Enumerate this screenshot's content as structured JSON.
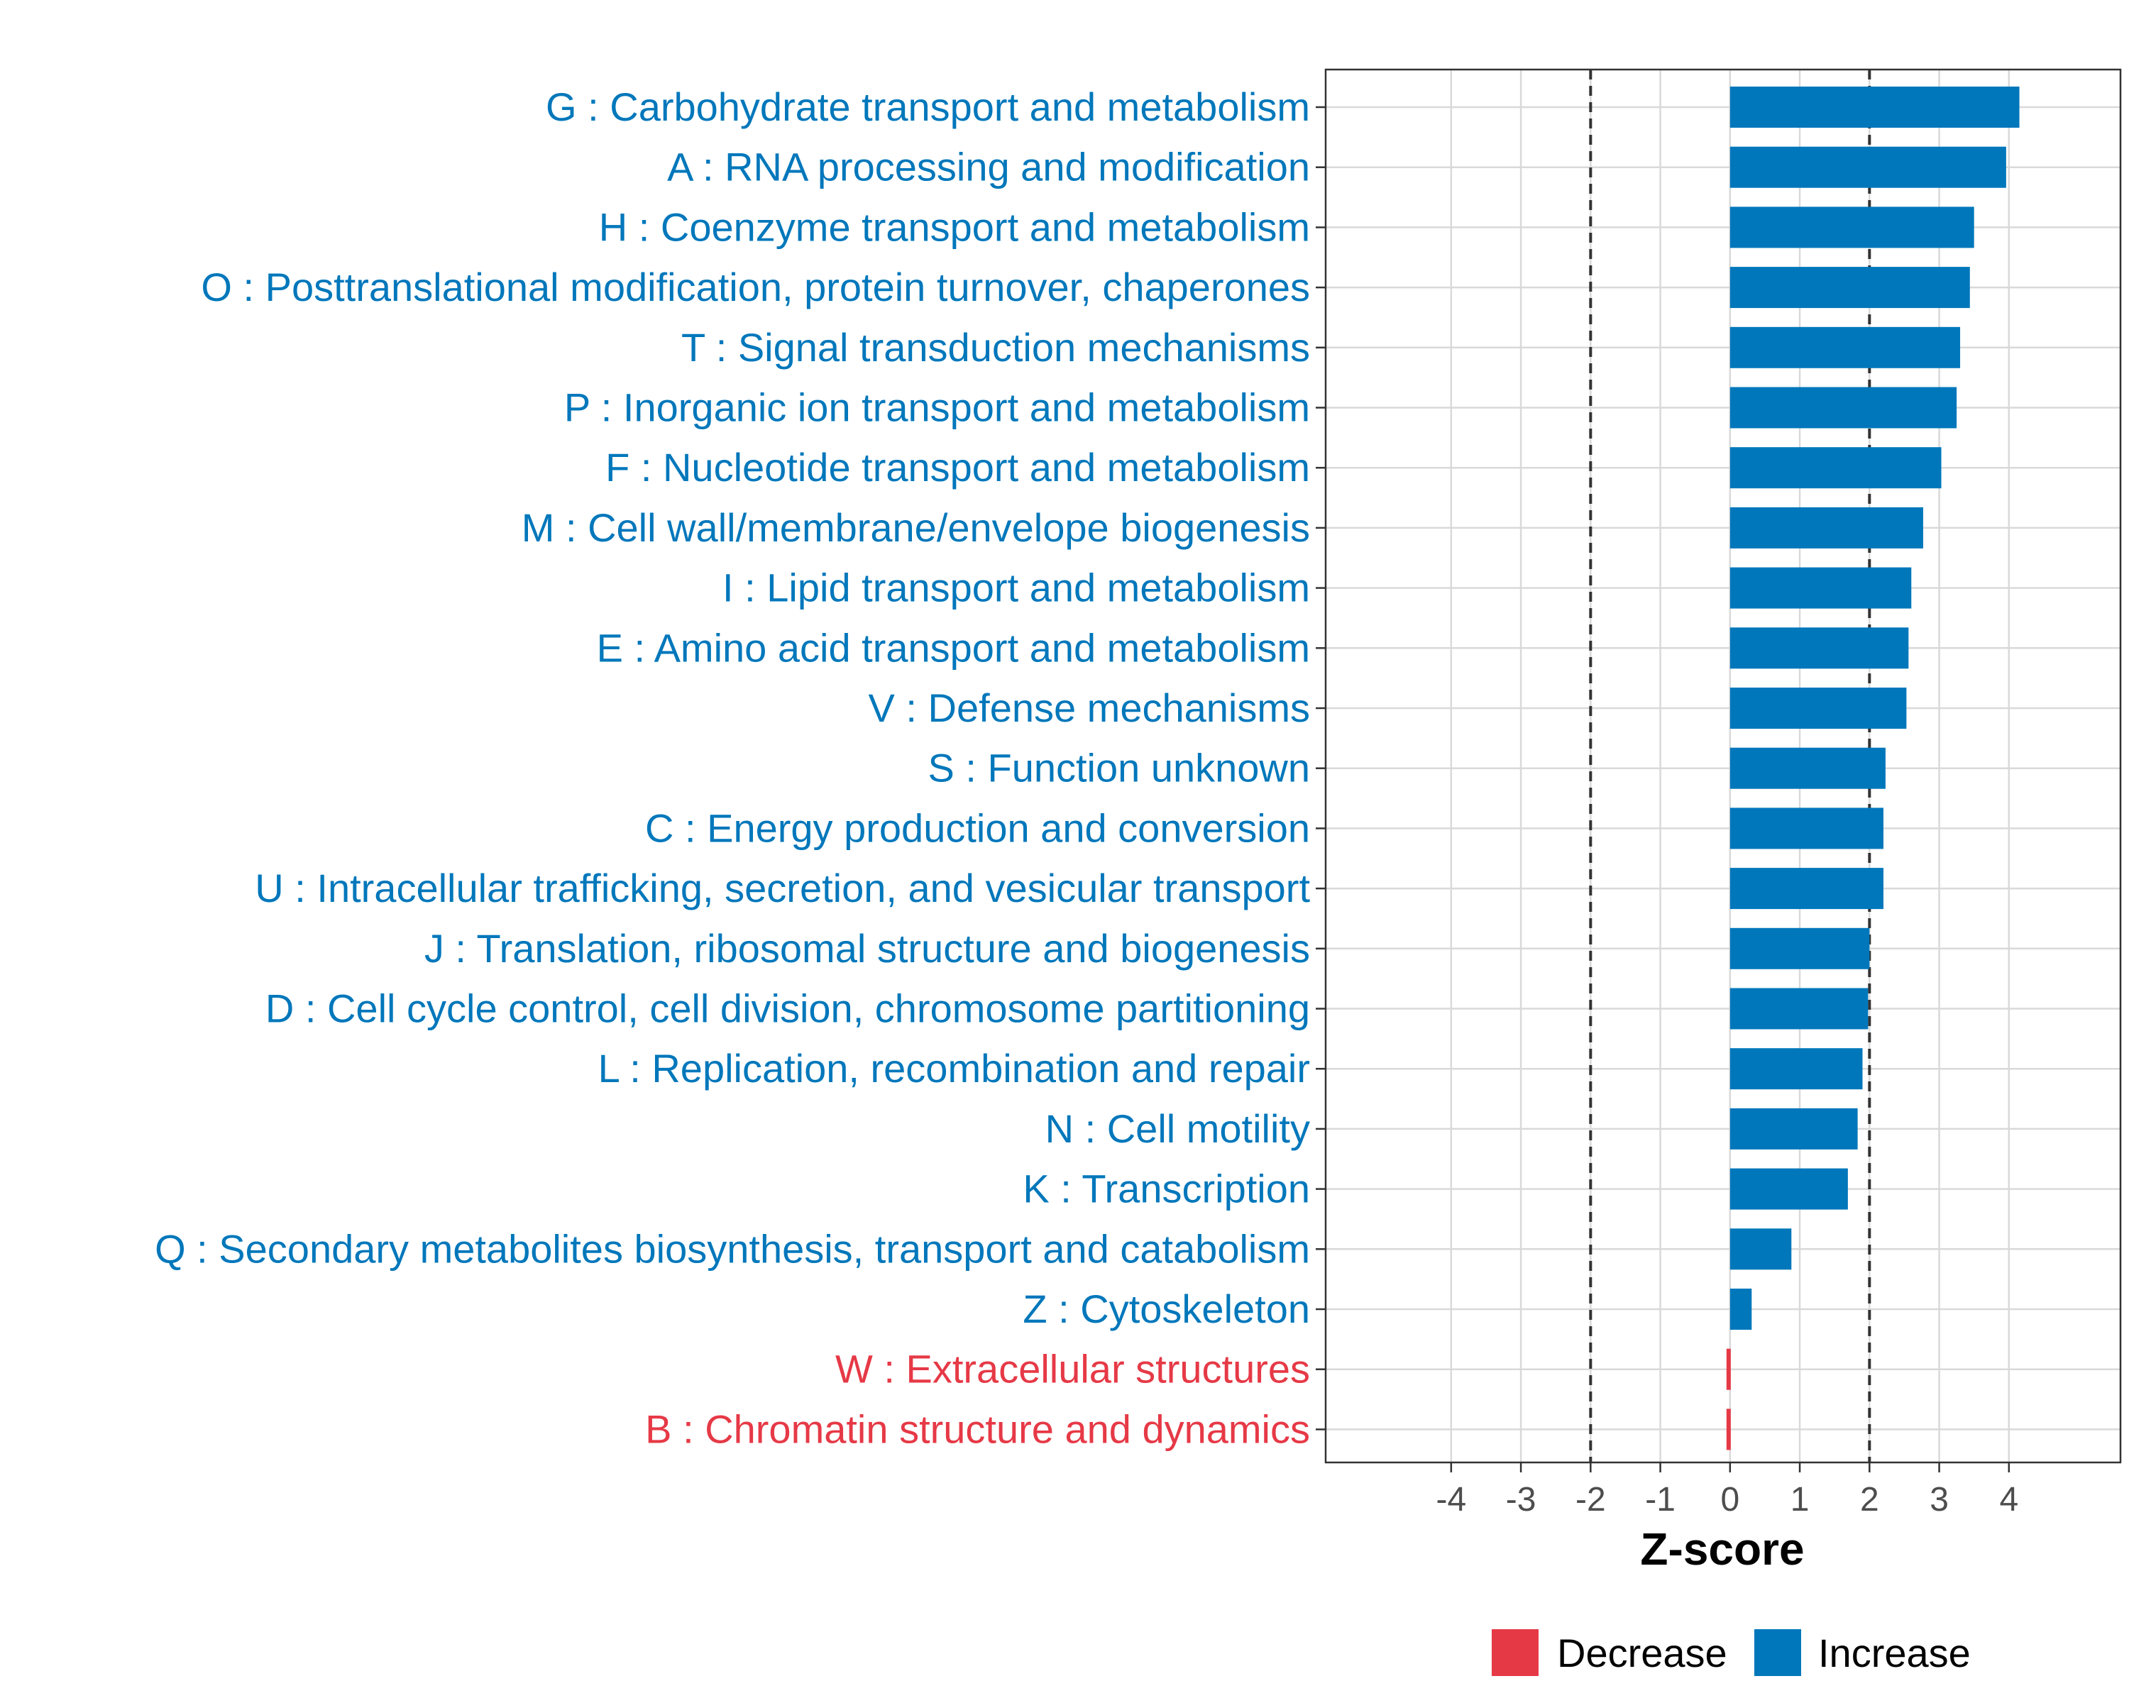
{
  "chart_data": {
    "type": "bar",
    "orientation": "horizontal",
    "title": "",
    "xlabel": "Z-score",
    "ylabel": "",
    "xlim": [
      -5.8,
      5.6
    ],
    "xticks": [
      -4,
      -3,
      -2,
      -1,
      0,
      1,
      2,
      3,
      4
    ],
    "reference_lines": [
      -2,
      2
    ],
    "grid": true,
    "legend_position": "bottom",
    "colors": {
      "Decrease": "#E63946",
      "Increase": "#0077BB"
    },
    "categories": [
      "G : Carbohydrate transport and metabolism",
      "A : RNA processing and modification",
      "H : Coenzyme transport and metabolism",
      "O : Posttranslational modification, protein turnover, chaperones",
      "T : Signal transduction mechanisms",
      "P : Inorganic ion transport and metabolism",
      "F : Nucleotide transport and metabolism",
      "M : Cell wall/membrane/envelope biogenesis",
      "I : Lipid transport and metabolism",
      "E : Amino acid transport and metabolism",
      "V : Defense mechanisms",
      "S : Function unknown",
      "C : Energy production and conversion",
      "U : Intracellular trafficking, secretion, and vesicular transport",
      "J : Translation, ribosomal structure and biogenesis",
      "D : Cell cycle control, cell division, chromosome partitioning",
      "L : Replication, recombination and repair",
      "N : Cell motility",
      "K : Transcription",
      "Q : Secondary metabolites biosynthesis, transport and catabolism",
      "Z : Cytoskeleton",
      "W : Extracellular structures",
      "B : Chromatin structure and dynamics"
    ],
    "values": [
      4.15,
      3.96,
      3.5,
      3.44,
      3.3,
      3.25,
      3.03,
      2.77,
      2.6,
      2.56,
      2.53,
      2.23,
      2.2,
      2.2,
      2.0,
      1.98,
      1.9,
      1.83,
      1.69,
      0.88,
      0.31,
      -0.04,
      -0.04
    ],
    "directions": [
      "Increase",
      "Increase",
      "Increase",
      "Increase",
      "Increase",
      "Increase",
      "Increase",
      "Increase",
      "Increase",
      "Increase",
      "Increase",
      "Increase",
      "Increase",
      "Increase",
      "Increase",
      "Increase",
      "Increase",
      "Increase",
      "Increase",
      "Increase",
      "Increase",
      "Decrease",
      "Decrease"
    ],
    "legend": [
      "Decrease",
      "Increase"
    ]
  }
}
